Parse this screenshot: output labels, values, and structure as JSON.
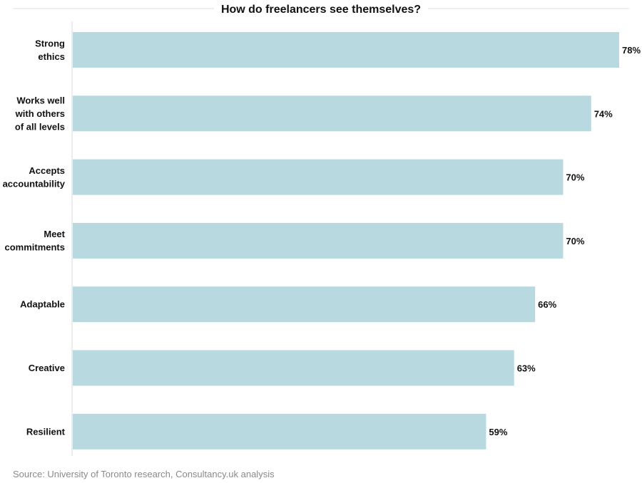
{
  "chart_data": {
    "type": "bar",
    "orientation": "horizontal",
    "title": "How do freelancers see themselves?",
    "categories": [
      [
        "Strong",
        "ethics"
      ],
      [
        "Works well",
        "with others",
        "of all levels"
      ],
      [
        "Accepts",
        "accountability"
      ],
      [
        "Meet",
        "commitments"
      ],
      [
        "Adaptable"
      ],
      [
        "Creative"
      ],
      [
        "Resilient"
      ]
    ],
    "values": [
      78,
      74,
      70,
      70,
      66,
      63,
      59
    ],
    "value_labels": [
      "78%",
      "74%",
      "70%",
      "70%",
      "66%",
      "63%",
      "59%"
    ],
    "unit": "%",
    "xlim": [
      0,
      78
    ],
    "grid": false,
    "bar_color": "#b7d9df",
    "source": "Source: University of Toronto research, Consultancy.uk analysis"
  }
}
